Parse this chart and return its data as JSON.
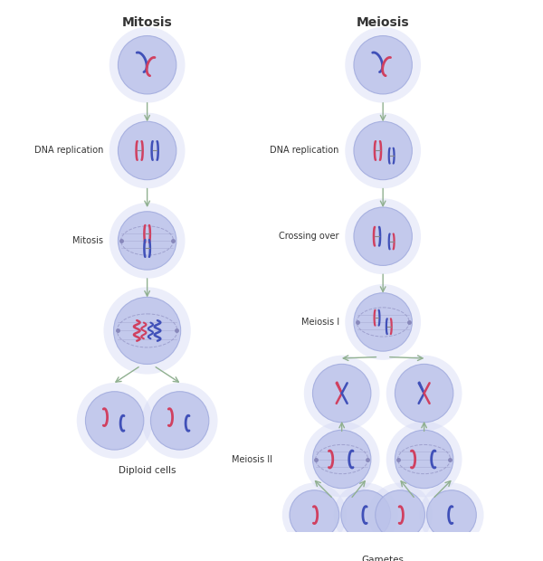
{
  "bg_color": "#ffffff",
  "cell_fill": "#bcc3ea",
  "cell_fill2": "#c8ceee",
  "cell_outer": "#d5daf5",
  "cell_edge": "#a0aadd",
  "arrow_color": "#90b090",
  "text_color": "#333333",
  "red_chrom": "#d04060",
  "blue_chrom": "#4050b8",
  "title_mitosis": "Mitosis",
  "title_meiosis": "Meiosis",
  "label_dna_rep": "DNA replication",
  "label_mitosis": "Mitosis",
  "label_diploid": "Diploid cells",
  "label_crossing": "Crossing over",
  "label_meiosis1": "Meiosis I",
  "label_meiosis2": "Meiosis II",
  "label_gametes": "Gametes",
  "figw": 6.0,
  "figh": 6.2,
  "dpi": 100
}
